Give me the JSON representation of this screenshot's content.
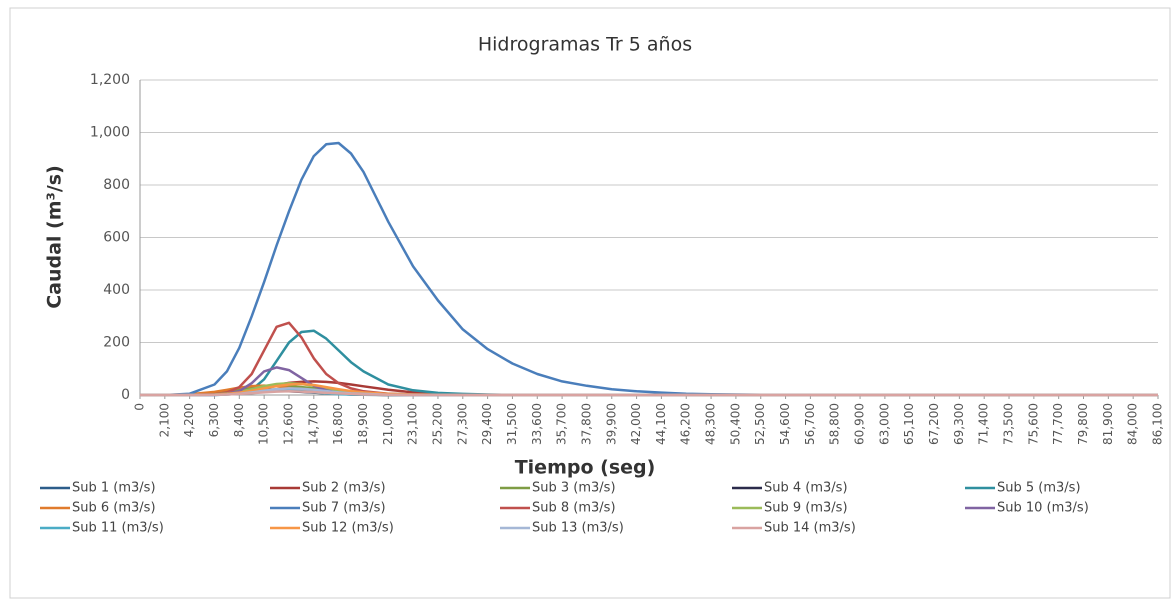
{
  "chart_data": {
    "type": "line",
    "title": "Hidrogramas Tr 5 años",
    "y_label": "Caudal (m³/s)",
    "x_label": "Tiempo (seg)",
    "grid": true,
    "legend": "bottom",
    "ylim": [
      0,
      1200
    ],
    "yticks": [
      0,
      200,
      400,
      600,
      800,
      {
        "value": 1000,
        "label": "1,000"
      },
      {
        "value": 1200,
        "label": "1,200"
      }
    ],
    "xlim": [
      0,
      86100
    ],
    "xticks": [
      0,
      {
        "value": 2100,
        "label": "2,100"
      },
      {
        "value": 4200,
        "label": "4,200"
      },
      {
        "value": 6300,
        "label": "6,300"
      },
      {
        "value": 8400,
        "label": "8,400"
      },
      {
        "value": 10500,
        "label": "10,500"
      },
      {
        "value": 12600,
        "label": "12,600"
      },
      {
        "value": 14700,
        "label": "14,700"
      },
      {
        "value": 16800,
        "label": "16,800"
      },
      {
        "value": 18900,
        "label": "18,900"
      },
      {
        "value": 21000,
        "label": "21,000"
      },
      {
        "value": 23100,
        "label": "23,100"
      },
      {
        "value": 25200,
        "label": "25,200"
      },
      {
        "value": 27300,
        "label": "27,300"
      },
      {
        "value": 29400,
        "label": "29,400"
      },
      {
        "value": 31500,
        "label": "31,500"
      },
      {
        "value": 33600,
        "label": "33,600"
      },
      {
        "value": 35700,
        "label": "35,700"
      },
      {
        "value": 37800,
        "label": "37,800"
      },
      {
        "value": 39900,
        "label": "39,900"
      },
      {
        "value": 42000,
        "label": "42,000"
      },
      {
        "value": 44100,
        "label": "44,100"
      },
      {
        "value": 46200,
        "label": "46,200"
      },
      {
        "value": 48300,
        "label": "48,300"
      },
      {
        "value": 50400,
        "label": "50,400"
      },
      {
        "value": 52500,
        "label": "52,500"
      },
      {
        "value": 54600,
        "label": "54,600"
      },
      {
        "value": 56700,
        "label": "56,700"
      },
      {
        "value": 58800,
        "label": "58,800"
      },
      {
        "value": 60900,
        "label": "60,900"
      },
      {
        "value": 63000,
        "label": "63,000"
      },
      {
        "value": 65100,
        "label": "65,100"
      },
      {
        "value": 67200,
        "label": "67,200"
      },
      {
        "value": 69300,
        "label": "69,300"
      },
      {
        "value": 71400,
        "label": "71,400"
      },
      {
        "value": 73500,
        "label": "73,500"
      },
      {
        "value": 75600,
        "label": "75,600"
      },
      {
        "value": 77700,
        "label": "77,700"
      },
      {
        "value": 79800,
        "label": "79,800"
      },
      {
        "value": 81900,
        "label": "81,900"
      },
      {
        "value": 84000,
        "label": "84,000"
      },
      {
        "value": 86100,
        "label": "86,100"
      }
    ],
    "x": [
      0,
      2100,
      4200,
      6300,
      7350,
      8400,
      9450,
      10500,
      11550,
      12600,
      13650,
      14700,
      15750,
      16800,
      17850,
      18900,
      21000,
      23100,
      25200,
      27300,
      29400,
      31500,
      33600,
      35700,
      37800,
      39900,
      42000,
      44100,
      46200,
      48300,
      50400,
      52500,
      63000,
      73500,
      86100
    ],
    "series": [
      {
        "name": "Sub 1 (m3/s)",
        "color": "#2c5d8a",
        "values": [
          0,
          0,
          1,
          5,
          9,
          13,
          17,
          20,
          21,
          20,
          17,
          14,
          10,
          7,
          5,
          3,
          1,
          0,
          0,
          0,
          0,
          0,
          0,
          0,
          0,
          0,
          0,
          0,
          0,
          0,
          0,
          0,
          0,
          0,
          0
        ]
      },
      {
        "name": "Sub 2 (m3/s)",
        "color": "#a83a36",
        "values": [
          0,
          0,
          0,
          2,
          5,
          10,
          18,
          28,
          38,
          46,
          50,
          52,
          50,
          46,
          40,
          33,
          20,
          10,
          5,
          2,
          1,
          0,
          0,
          0,
          0,
          0,
          0,
          0,
          0,
          0,
          0,
          0,
          0,
          0,
          0
        ]
      },
      {
        "name": "Sub 3 (m3/s)",
        "color": "#7e9c44",
        "values": [
          0,
          0,
          2,
          8,
          15,
          22,
          28,
          32,
          34,
          33,
          30,
          26,
          22,
          18,
          14,
          10,
          5,
          2,
          1,
          0,
          0,
          0,
          0,
          0,
          0,
          0,
          0,
          0,
          0,
          0,
          0,
          0,
          0,
          0,
          0
        ]
      },
      {
        "name": "Sub 4 (m3/s)",
        "color": "#2b2b4b",
        "values": [
          0,
          0,
          0,
          1,
          3,
          6,
          10,
          13,
          15,
          14,
          12,
          9,
          6,
          4,
          2,
          1,
          0,
          0,
          0,
          0,
          0,
          0,
          0,
          0,
          0,
          0,
          0,
          0,
          0,
          0,
          0,
          0,
          0,
          0,
          0
        ]
      },
      {
        "name": "Sub 5 (m3/s)",
        "color": "#2f8f9f",
        "values": [
          0,
          0,
          0,
          0,
          2,
          5,
          20,
          60,
          130,
          200,
          240,
          245,
          215,
          170,
          125,
          90,
          40,
          18,
          8,
          4,
          2,
          0,
          0,
          0,
          0,
          0,
          0,
          0,
          0,
          0,
          0,
          0,
          0,
          0,
          0
        ]
      },
      {
        "name": "Sub 6 (m3/s)",
        "color": "#e07b2c",
        "values": [
          0,
          0,
          3,
          12,
          20,
          28,
          34,
          36,
          33,
          27,
          20,
          14,
          9,
          6,
          3,
          2,
          0,
          0,
          0,
          0,
          0,
          0,
          0,
          0,
          0,
          0,
          0,
          0,
          0,
          0,
          0,
          0,
          0,
          0,
          0
        ]
      },
      {
        "name": "Sub 7 (m3/s)",
        "color": "#4a7ebb",
        "values": [
          0,
          0,
          5,
          40,
          90,
          180,
          300,
          430,
          570,
          700,
          820,
          910,
          955,
          960,
          920,
          850,
          660,
          490,
          360,
          250,
          175,
          120,
          80,
          52,
          35,
          22,
          14,
          9,
          5,
          3,
          2,
          1,
          0,
          0,
          0
        ]
      },
      {
        "name": "Sub 8 (m3/s)",
        "color": "#c0504d",
        "values": [
          0,
          0,
          0,
          3,
          10,
          30,
          80,
          170,
          260,
          275,
          220,
          140,
          80,
          45,
          25,
          14,
          5,
          2,
          0,
          0,
          0,
          0,
          0,
          0,
          0,
          0,
          0,
          0,
          0,
          0,
          0,
          0,
          0,
          0,
          0
        ]
      },
      {
        "name": "Sub 9 (m3/s)",
        "color": "#9bbb59",
        "values": [
          0,
          0,
          0,
          2,
          6,
          12,
          22,
          34,
          42,
          45,
          42,
          35,
          26,
          18,
          12,
          8,
          3,
          1,
          0,
          0,
          0,
          0,
          0,
          0,
          0,
          0,
          0,
          0,
          0,
          0,
          0,
          0,
          0,
          0,
          0
        ]
      },
      {
        "name": "Sub 10 (m3/s)",
        "color": "#8064a2",
        "values": [
          0,
          0,
          0,
          0,
          5,
          15,
          45,
          90,
          105,
          95,
          65,
          35,
          18,
          8,
          4,
          2,
          0,
          0,
          0,
          0,
          0,
          0,
          0,
          0,
          0,
          0,
          0,
          0,
          0,
          0,
          0,
          0,
          0,
          0,
          0
        ]
      },
      {
        "name": "Sub 11 (m3/s)",
        "color": "#4bacc6",
        "values": [
          0,
          0,
          0,
          1,
          3,
          7,
          12,
          17,
          20,
          19,
          15,
          10,
          6,
          3,
          2,
          1,
          0,
          0,
          0,
          0,
          0,
          0,
          0,
          0,
          0,
          0,
          0,
          0,
          0,
          0,
          0,
          0,
          0,
          0,
          0
        ]
      },
      {
        "name": "Sub 12 (m3/s)",
        "color": "#f79646",
        "values": [
          0,
          0,
          0,
          1,
          4,
          9,
          16,
          25,
          34,
          40,
          42,
          38,
          30,
          22,
          15,
          10,
          4,
          2,
          1,
          0,
          0,
          0,
          0,
          0,
          0,
          0,
          0,
          0,
          0,
          0,
          0,
          0,
          0,
          0,
          0
        ]
      },
      {
        "name": "Sub 13 (m3/s)",
        "color": "#a5b7d6",
        "values": [
          0,
          0,
          0,
          0,
          2,
          5,
          10,
          16,
          22,
          25,
          24,
          20,
          15,
          10,
          6,
          4,
          1,
          0,
          0,
          0,
          0,
          0,
          0,
          0,
          0,
          0,
          0,
          0,
          0,
          0,
          0,
          0,
          0,
          0,
          0
        ]
      },
      {
        "name": "Sub 14 (m3/s)",
        "color": "#d9a3a1",
        "values": [
          0,
          0,
          0,
          1,
          2,
          4,
          7,
          10,
          13,
          14,
          13,
          11,
          8,
          6,
          4,
          2,
          1,
          0,
          0,
          0,
          0,
          0,
          0,
          0,
          0,
          0,
          0,
          0,
          0,
          0,
          0,
          0,
          0,
          0,
          0
        ]
      }
    ]
  }
}
